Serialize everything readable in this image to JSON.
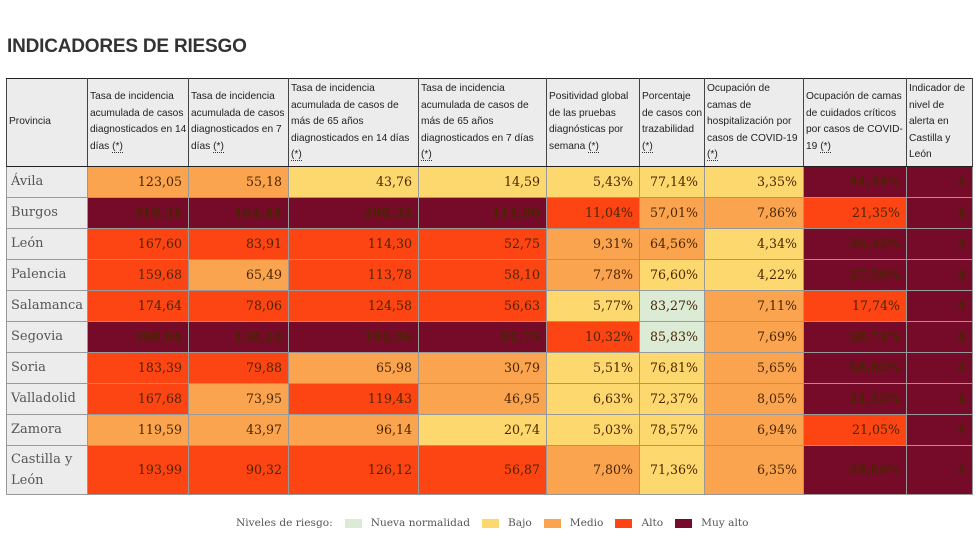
{
  "page": {
    "title": "INDICADORES DE RIESGO"
  },
  "colors": {
    "level_0": "#dbebd6",
    "level_1": "#fdd86e",
    "level_2": "#fba44f",
    "level_3": "#fd4413",
    "level_4": "#760a29",
    "header_bg": "#ececec"
  },
  "table": {
    "asterisk_label": "(*)",
    "columns": [
      {
        "label": "Provincia",
        "has_note": false
      },
      {
        "label": "Tasa de incidencia acumulada de casos diagnosticados en 14 días",
        "has_note": true
      },
      {
        "label": "Tasa de incidencia acumulada de casos diagnosticados en 7 días",
        "has_note": true
      },
      {
        "label": "Tasa de incidencia acumulada de casos de más de 65 años diagnosticados en 14 días",
        "has_note": true
      },
      {
        "label": "Tasa de incidencia acumulada de casos de más de 65 años diagnosticados en 7 días",
        "has_note": true
      },
      {
        "label": "Positividad global de las pruebas diagnósticas por semana",
        "has_note": true
      },
      {
        "label": "Porcentaje de casos con trazabilidad",
        "has_note": true
      },
      {
        "label": "Ocupación de camas de hospitalización por casos de COVID-19",
        "has_note": true
      },
      {
        "label": "Ocupación de camas de cuidados críticos por casos de COVID-19",
        "has_note": true
      },
      {
        "label": "Indicador de nivel de alerta en Castilla y León",
        "has_note": false
      }
    ],
    "rows": [
      {
        "province": "Ávila",
        "cells": [
          {
            "value": "123,05",
            "level": 2
          },
          {
            "value": "55,18",
            "level": 2
          },
          {
            "value": "43,76",
            "level": 1
          },
          {
            "value": "14,59",
            "level": 1
          },
          {
            "value": "5,43%",
            "level": 1
          },
          {
            "value": "77,14%",
            "level": 1
          },
          {
            "value": "3,35%",
            "level": 1
          },
          {
            "value": "44,44%",
            "level": 4
          },
          {
            "value": "4",
            "level": 4
          }
        ]
      },
      {
        "province": "Burgos",
        "cells": [
          {
            "value": "319,31",
            "level": 4
          },
          {
            "value": "164,41",
            "level": 4
          },
          {
            "value": "206,32",
            "level": 4
          },
          {
            "value": "111,90",
            "level": 4
          },
          {
            "value": "11,04%",
            "level": 3
          },
          {
            "value": "57,01%",
            "level": 2
          },
          {
            "value": "7,86%",
            "level": 2
          },
          {
            "value": "21,35%",
            "level": 3
          },
          {
            "value": "4",
            "level": 4
          }
        ]
      },
      {
        "province": "León",
        "cells": [
          {
            "value": "167,60",
            "level": 3
          },
          {
            "value": "83,91",
            "level": 3
          },
          {
            "value": "114,30",
            "level": 3
          },
          {
            "value": "52,75",
            "level": 3
          },
          {
            "value": "9,31%",
            "level": 2
          },
          {
            "value": "64,56%",
            "level": 2
          },
          {
            "value": "4,34%",
            "level": 1
          },
          {
            "value": "26,32%",
            "level": 4
          },
          {
            "value": "4",
            "level": 4
          }
        ]
      },
      {
        "province": "Palencia",
        "cells": [
          {
            "value": "159,68",
            "level": 3
          },
          {
            "value": "65,49",
            "level": 2
          },
          {
            "value": "113,78",
            "level": 3
          },
          {
            "value": "58,10",
            "level": 3
          },
          {
            "value": "7,78%",
            "level": 2
          },
          {
            "value": "76,60%",
            "level": 1
          },
          {
            "value": "4,22%",
            "level": 1
          },
          {
            "value": "37,50%",
            "level": 4
          },
          {
            "value": "4",
            "level": 4
          }
        ]
      },
      {
        "province": "Salamanca",
        "cells": [
          {
            "value": "174,64",
            "level": 3
          },
          {
            "value": "78,06",
            "level": 3
          },
          {
            "value": "124,58",
            "level": 3
          },
          {
            "value": "56,63",
            "level": 3
          },
          {
            "value": "5,77%",
            "level": 1
          },
          {
            "value": "83,27%",
            "level": 0
          },
          {
            "value": "7,11%",
            "level": 2
          },
          {
            "value": "17,74%",
            "level": 3
          },
          {
            "value": "4",
            "level": 4
          }
        ]
      },
      {
        "province": "Segovia",
        "cells": [
          {
            "value": "308,84",
            "level": 4
          },
          {
            "value": "138,13",
            "level": 4
          },
          {
            "value": "194,96",
            "level": 4
          },
          {
            "value": "91,75",
            "level": 4
          },
          {
            "value": "10,32%",
            "level": 3
          },
          {
            "value": "85,83%",
            "level": 0
          },
          {
            "value": "7,69%",
            "level": 2
          },
          {
            "value": "38,71%",
            "level": 4
          },
          {
            "value": "4",
            "level": 4
          }
        ]
      },
      {
        "province": "Soria",
        "cells": [
          {
            "value": "183,39",
            "level": 3
          },
          {
            "value": "79,88",
            "level": 3
          },
          {
            "value": "65,98",
            "level": 2
          },
          {
            "value": "30,79",
            "level": 2
          },
          {
            "value": "5,51%",
            "level": 1
          },
          {
            "value": "76,81%",
            "level": 1
          },
          {
            "value": "5,65%",
            "level": 2
          },
          {
            "value": "58,82%",
            "level": 4
          },
          {
            "value": "4",
            "level": 4
          }
        ]
      },
      {
        "province": "Valladolid",
        "cells": [
          {
            "value": "167,68",
            "level": 3
          },
          {
            "value": "73,95",
            "level": 2
          },
          {
            "value": "119,43",
            "level": 3
          },
          {
            "value": "46,95",
            "level": 2
          },
          {
            "value": "6,63%",
            "level": 1
          },
          {
            "value": "72,37%",
            "level": 1
          },
          {
            "value": "8,05%",
            "level": 2
          },
          {
            "value": "31,15%",
            "level": 4
          },
          {
            "value": "4",
            "level": 4
          }
        ]
      },
      {
        "province": "Zamora",
        "cells": [
          {
            "value": "119,59",
            "level": 2
          },
          {
            "value": "43,97",
            "level": 2
          },
          {
            "value": "96,14",
            "level": 2
          },
          {
            "value": "20,74",
            "level": 1
          },
          {
            "value": "5,03%",
            "level": 1
          },
          {
            "value": "78,57%",
            "level": 1
          },
          {
            "value": "6,94%",
            "level": 2
          },
          {
            "value": "21,05%",
            "level": 3
          },
          {
            "value": "4",
            "level": 4
          }
        ]
      },
      {
        "province": "Castilla y León",
        "cells": [
          {
            "value": "193,99",
            "level": 3
          },
          {
            "value": "90,32",
            "level": 3
          },
          {
            "value": "126,12",
            "level": 3
          },
          {
            "value": "56,87",
            "level": 3
          },
          {
            "value": "7,80%",
            "level": 2
          },
          {
            "value": "71,36%",
            "level": 1
          },
          {
            "value": "6,35%",
            "level": 2
          },
          {
            "value": "28,66%",
            "level": 4
          },
          {
            "value": "4",
            "level": 4
          }
        ]
      }
    ]
  },
  "legend": {
    "label": "Niveles de riesgo:",
    "items": [
      {
        "label": "Nueva normalidad",
        "level": 0
      },
      {
        "label": "Bajo",
        "level": 1
      },
      {
        "label": "Medio",
        "level": 2
      },
      {
        "label": "Alto",
        "level": 3
      },
      {
        "label": "Muy alto",
        "level": 4
      }
    ]
  }
}
